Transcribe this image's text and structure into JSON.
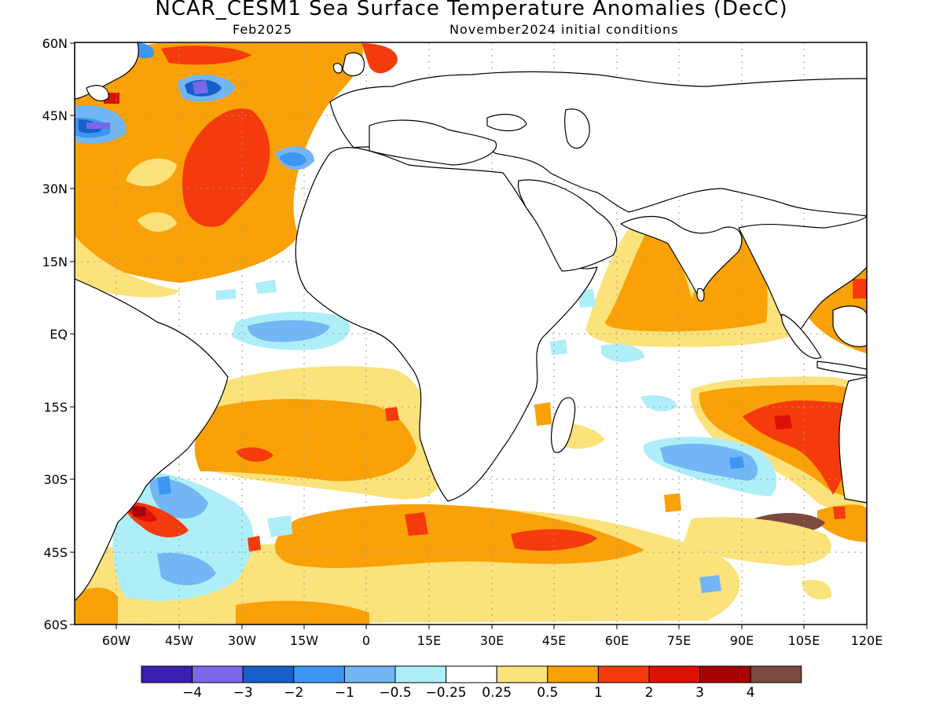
{
  "title": "NCAR_CESM1 Sea Surface Temperature Anomalies (DecC)",
  "subtitle_left": "Feb2025",
  "subtitle_right": "November2024 initial conditions",
  "lat_labels": [
    "60N",
    "45N",
    "30N",
    "15N",
    "EQ",
    "15S",
    "30S",
    "45S",
    "60S"
  ],
  "lon_labels": [
    "60W",
    "45W",
    "30W",
    "15W",
    "0",
    "15E",
    "30E",
    "45E",
    "60E",
    "75E",
    "90E",
    "105E",
    "120E"
  ],
  "colors": {
    "n4": "#3a1fb0",
    "n3": "#7b68e8",
    "n2": "#1660c8",
    "n1": "#3d96f2",
    "n05": "#72b6f5",
    "n025": "#aeeef8",
    "neutral": "#ffffff",
    "p025": "#fbe27a",
    "p05": "#f9a106",
    "p1": "#f53a0c",
    "p2": "#dd1207",
    "p3": "#a40403",
    "p4": "#7a4a3e"
  },
  "colorbar": {
    "colors": [
      "#3a1fb0",
      "#7b68e8",
      "#1660c8",
      "#3d96f2",
      "#72b6f5",
      "#aeeef8",
      "#ffffff",
      "#fbe27a",
      "#f9a106",
      "#f53a0c",
      "#dd1207",
      "#a40403",
      "#7a4a3e"
    ],
    "labels": [
      "−4",
      "−3",
      "−2",
      "−1",
      "−0.5",
      "−0.25",
      "0.25",
      "0.5",
      "1",
      "2",
      "3",
      "4"
    ]
  }
}
